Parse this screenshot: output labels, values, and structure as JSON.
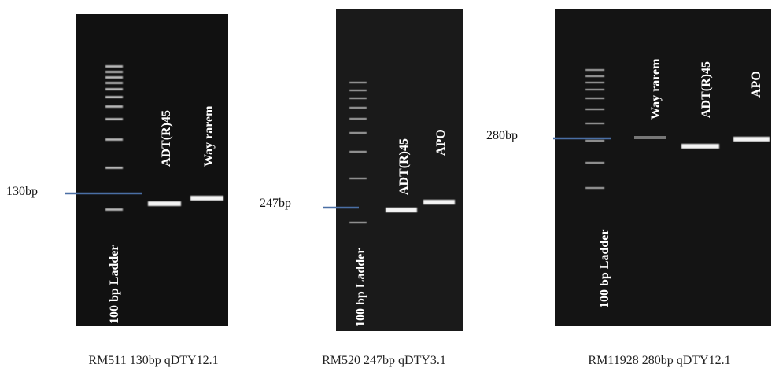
{
  "panels": [
    {
      "marker": "130bp",
      "lanes": [
        "100 bp Ladder",
        "ADT(R)45",
        "Way rarem"
      ],
      "caption": "RM511 130bp qDTY12.1"
    },
    {
      "marker": "247bp",
      "lanes": [
        "100 bp Ladder",
        "ADT(R)45",
        "APO"
      ],
      "caption": "RM520 247bp qDTY3.1"
    },
    {
      "marker": "280bp",
      "lanes": [
        "100 bp Ladder",
        "Way rarem",
        "ADT(R)45",
        "APO"
      ],
      "caption": "RM11928 280bp qDTY12.1"
    }
  ]
}
